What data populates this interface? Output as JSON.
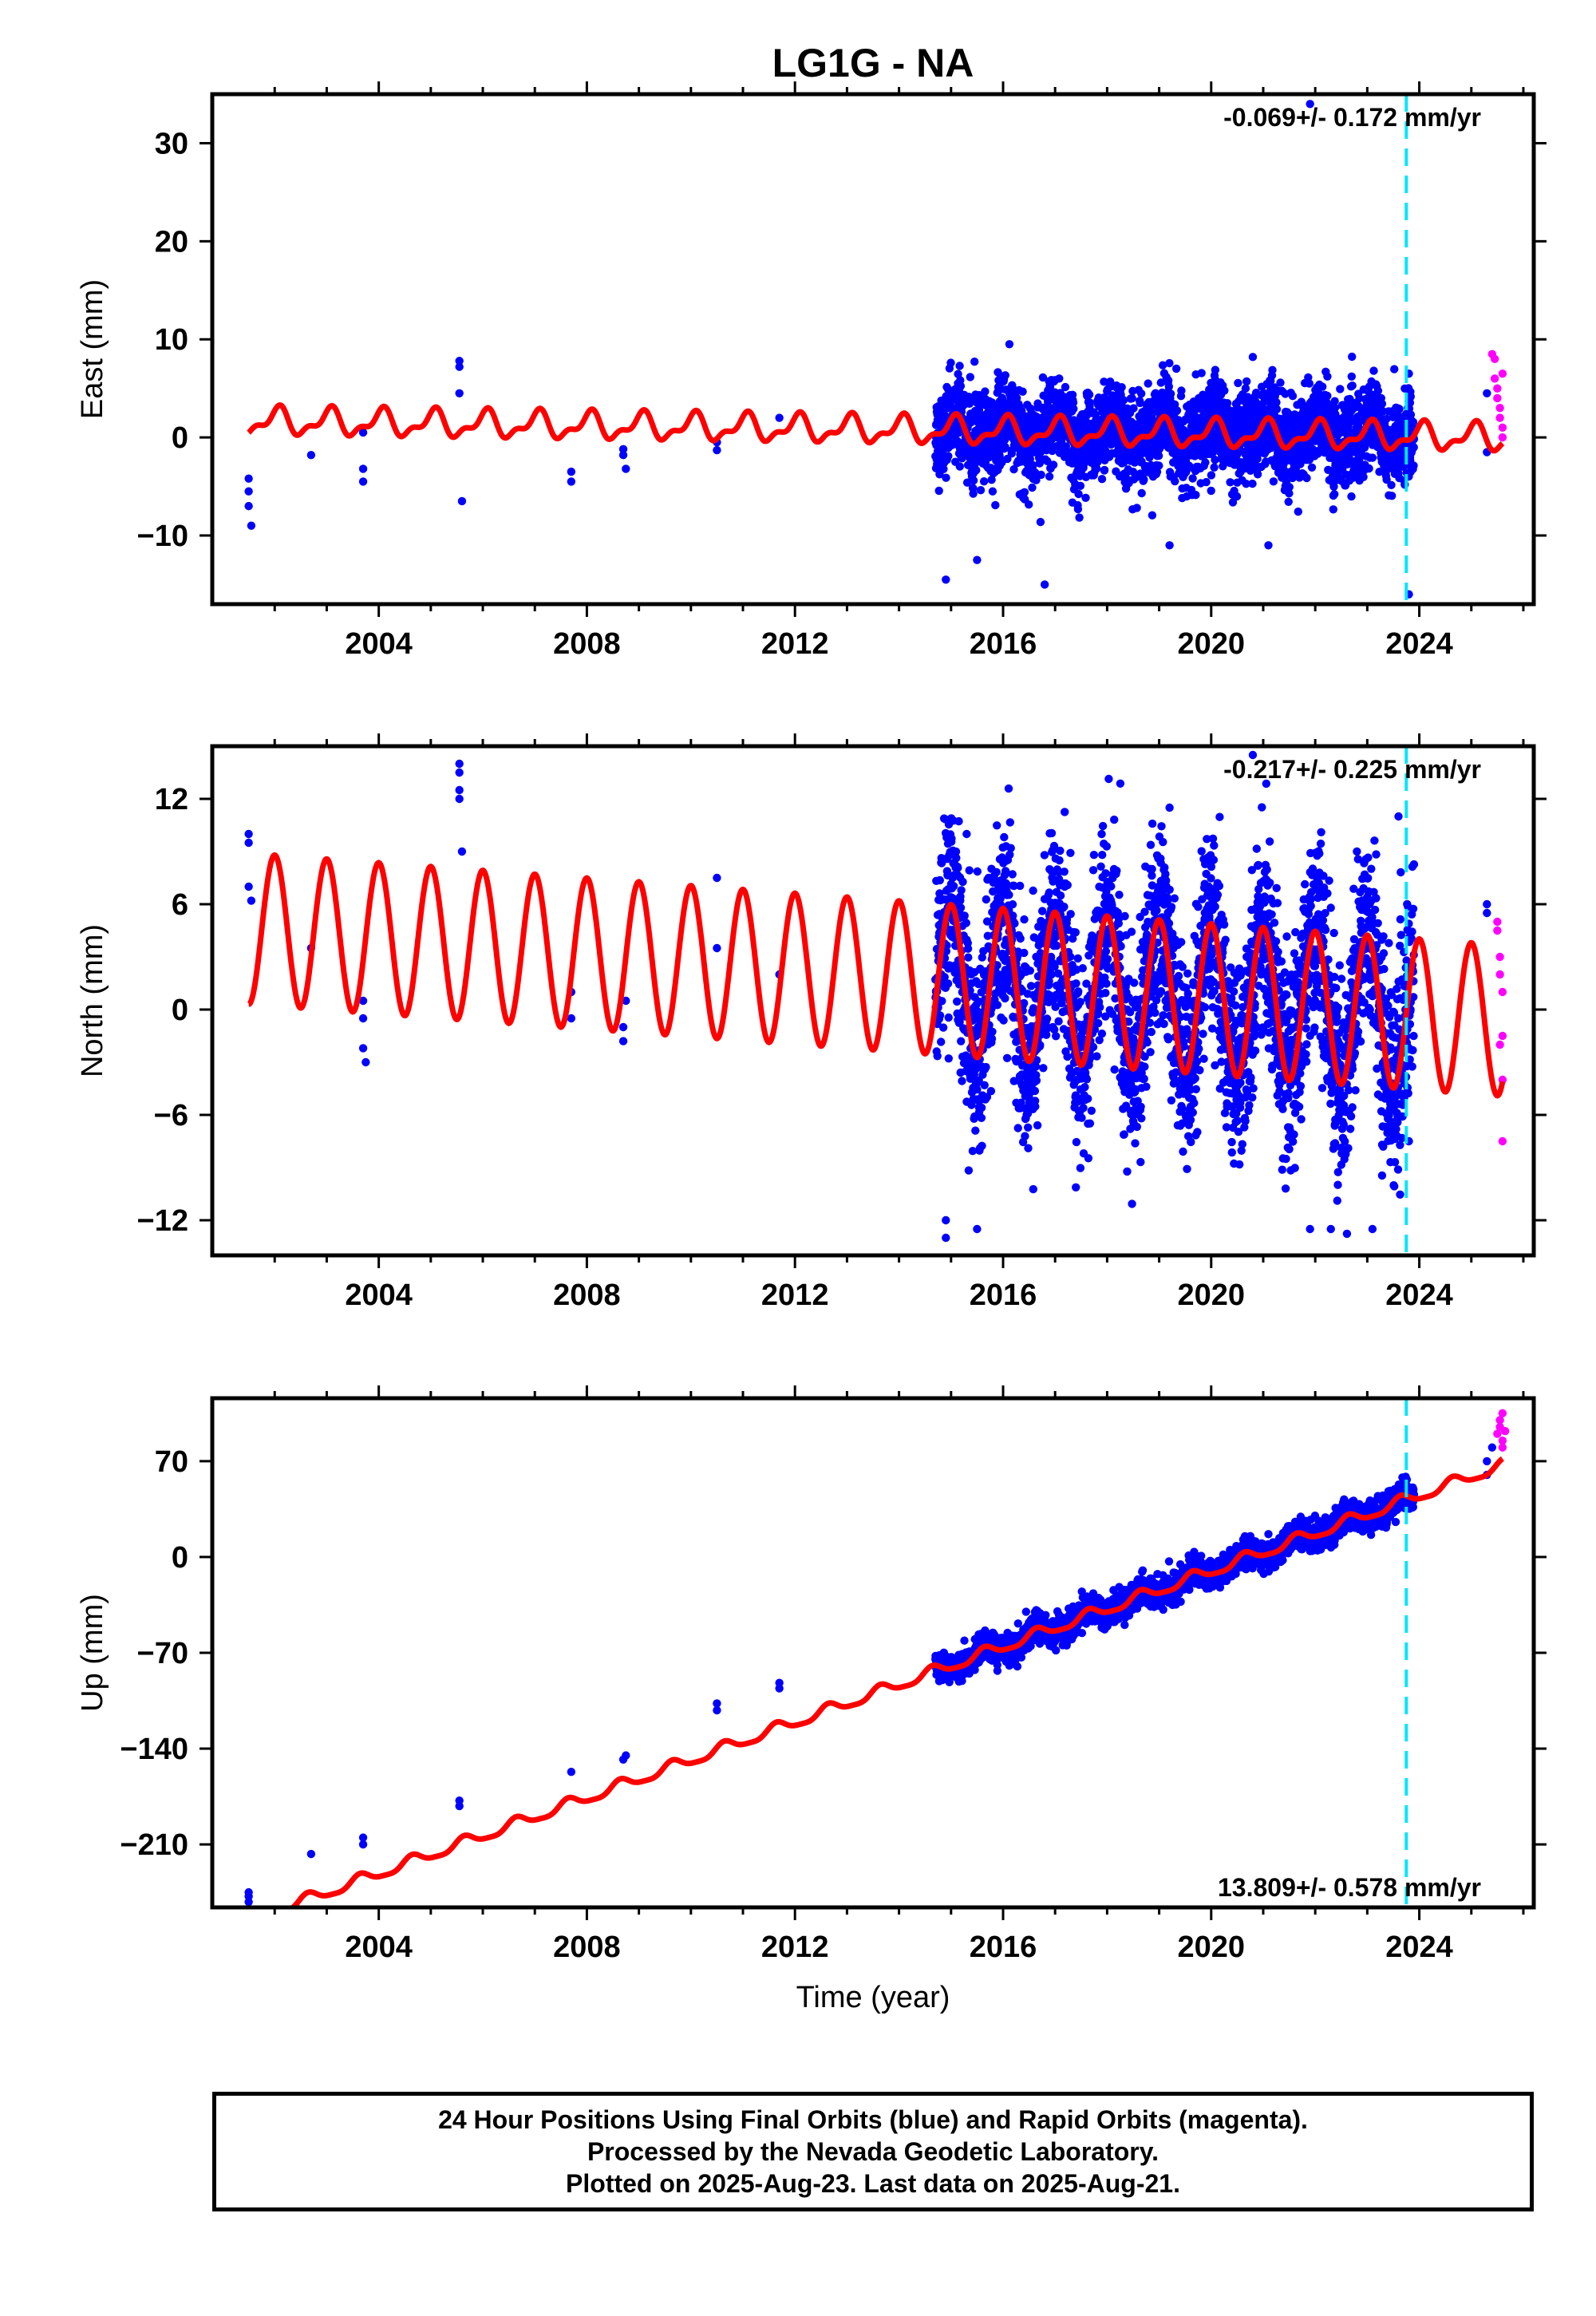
{
  "title": "LG1G - NA",
  "x_axis_label": "Time (year)",
  "footer": {
    "line1": "24 Hour Positions Using Final Orbits (blue) and Rapid Orbits (magenta).",
    "line2": "Processed by the Nevada Geodetic Laboratory.",
    "line3": "Plotted on 2025-Aug-23. Last data on 2025-Aug-21."
  },
  "colors": {
    "final_orbits": "#0000ff",
    "rapid_orbits": "#ff00ff",
    "model_fit": "#ff0000",
    "event_marker": "#00e5ff"
  },
  "chart_data": [
    {
      "type": "scatter",
      "panel": "east",
      "ylabel": "East (mm)",
      "rate_label": "-0.069+/- 0.172 mm/yr",
      "xlim": [
        2000.8,
        2026.2
      ],
      "ylim": [
        -17,
        35
      ],
      "xticks": [
        2004,
        2008,
        2012,
        2016,
        2020,
        2024
      ],
      "yticks": [
        -10,
        0,
        10,
        20,
        30
      ],
      "ytick_labels": [
        "−10",
        "0",
        "10",
        "20",
        "30"
      ],
      "rate_mm_per_yr": -0.069,
      "event_line_x": 2023.75,
      "model": {
        "offset": 0.8,
        "rate": -0.069,
        "ref_year": 2013.5,
        "annual_amp": 1.2,
        "annual_phase": 0.2,
        "semi_amp": 0.6,
        "semi_phase": 1.0
      },
      "scatter_noise": 2.2,
      "dense_span": [
        2014.7,
        2023.9
      ],
      "final_points": [
        [
          2001.5,
          -4.2
        ],
        [
          2001.5,
          -5.5
        ],
        [
          2001.5,
          -7.0
        ],
        [
          2001.55,
          -9.0
        ],
        [
          2002.7,
          -1.8
        ],
        [
          2003.7,
          -3.2
        ],
        [
          2003.7,
          -4.5
        ],
        [
          2003.7,
          0.5
        ],
        [
          2005.55,
          7.8
        ],
        [
          2005.55,
          7.2
        ],
        [
          2005.55,
          4.5
        ],
        [
          2005.6,
          -6.5
        ],
        [
          2007.7,
          -3.5
        ],
        [
          2007.7,
          -4.5
        ],
        [
          2008.7,
          -1.2
        ],
        [
          2008.7,
          -1.8
        ],
        [
          2008.75,
          -3.2
        ],
        [
          2010.5,
          -0.5
        ],
        [
          2010.5,
          -1.3
        ],
        [
          2011.7,
          2.0
        ],
        [
          2014.9,
          -14.5
        ],
        [
          2015.5,
          -12.5
        ],
        [
          2016.8,
          -15.0
        ],
        [
          2019.2,
          -11.0
        ],
        [
          2020.8,
          8.2
        ],
        [
          2021.1,
          -11.0
        ],
        [
          2021.9,
          34.0
        ],
        [
          2023.8,
          -16.0
        ],
        [
          2023.8,
          6.5
        ],
        [
          2025.3,
          4.5
        ],
        [
          2025.3,
          -1.5
        ]
      ],
      "rapid_points": [
        [
          2025.4,
          8.5
        ],
        [
          2025.45,
          8.0
        ],
        [
          2025.45,
          6.0
        ],
        [
          2025.5,
          5.0
        ],
        [
          2025.5,
          4.0
        ],
        [
          2025.55,
          3.0
        ],
        [
          2025.55,
          2.0
        ],
        [
          2025.6,
          1.0
        ],
        [
          2025.6,
          0.0
        ],
        [
          2025.6,
          6.5
        ]
      ]
    },
    {
      "type": "scatter",
      "panel": "north",
      "ylabel": "North (mm)",
      "rate_label": "-0.217+/- 0.225 mm/yr",
      "xlim": [
        2000.8,
        2026.2
      ],
      "ylim": [
        -14,
        15
      ],
      "xticks": [
        2004,
        2008,
        2012,
        2016,
        2020,
        2024
      ],
      "yticks": [
        -12,
        -6,
        0,
        6,
        12
      ],
      "ytick_labels": [
        "−12",
        "−6",
        "0",
        "6",
        "12"
      ],
      "rate_mm_per_yr": -0.217,
      "event_line_x": 2023.75,
      "model": {
        "offset": 2.0,
        "rate": -0.217,
        "ref_year": 2013.5,
        "annual_amp": 4.3,
        "annual_phase": 0.25,
        "semi_amp": 0.0,
        "semi_phase": 0.0
      },
      "scatter_noise": 2.8,
      "dense_span": [
        2014.7,
        2023.9
      ],
      "final_points": [
        [
          2001.5,
          10.0
        ],
        [
          2001.5,
          9.5
        ],
        [
          2001.5,
          7.0
        ],
        [
          2001.55,
          6.2
        ],
        [
          2002.7,
          3.5
        ],
        [
          2003.7,
          0.5
        ],
        [
          2003.7,
          -0.5
        ],
        [
          2003.7,
          -2.2
        ],
        [
          2003.75,
          -3.0
        ],
        [
          2005.55,
          14.0
        ],
        [
          2005.55,
          13.5
        ],
        [
          2005.55,
          12.5
        ],
        [
          2005.55,
          12.0
        ],
        [
          2005.6,
          9.0
        ],
        [
          2007.7,
          1.0
        ],
        [
          2007.7,
          -0.5
        ],
        [
          2008.7,
          -1.0
        ],
        [
          2008.7,
          -1.8
        ],
        [
          2008.75,
          0.5
        ],
        [
          2010.5,
          7.5
        ],
        [
          2010.5,
          3.5
        ],
        [
          2011.7,
          2.0
        ],
        [
          2014.9,
          -13.0
        ],
        [
          2014.9,
          -12.0
        ],
        [
          2015.5,
          -12.5
        ],
        [
          2015.3,
          10.0
        ],
        [
          2019.2,
          11.5
        ],
        [
          2020.8,
          14.5
        ],
        [
          2021.9,
          -12.5
        ],
        [
          2022.3,
          -12.5
        ],
        [
          2023.1,
          -12.5
        ],
        [
          2023.6,
          11.0
        ],
        [
          2023.8,
          -7.5
        ],
        [
          2025.3,
          6.0
        ],
        [
          2025.3,
          5.5
        ]
      ],
      "rapid_points": [
        [
          2025.5,
          5.0
        ],
        [
          2025.5,
          4.5
        ],
        [
          2025.55,
          3.0
        ],
        [
          2025.55,
          2.0
        ],
        [
          2025.6,
          1.0
        ],
        [
          2025.6,
          -1.5
        ],
        [
          2025.6,
          -4.0
        ],
        [
          2025.6,
          -7.5
        ],
        [
          2025.55,
          -2.0
        ]
      ]
    },
    {
      "type": "scatter",
      "panel": "up",
      "ylabel": "Up (mm)",
      "rate_label": "13.809+/- 0.578 mm/yr",
      "xlim": [
        2000.8,
        2026.2
      ],
      "ylim": [
        -256,
        116
      ],
      "xticks": [
        2004,
        2008,
        2012,
        2016,
        2020,
        2024
      ],
      "yticks": [
        -210,
        -140,
        -70,
        0,
        70
      ],
      "ytick_labels": [
        "−210",
        "−140",
        "−70",
        "0",
        "70"
      ],
      "rate_mm_per_yr": 13.809,
      "event_line_x": 2023.75,
      "model": {
        "offset": -100.0,
        "rate": 13.809,
        "ref_year": 2013.5,
        "annual_amp": 4.0,
        "annual_phase": 0.6,
        "semi_amp": 1.0,
        "semi_phase": 0.0
      },
      "scatter_noise": 5.0,
      "dense_span": [
        2014.7,
        2023.9
      ],
      "final_points": [
        [
          2001.5,
          -245.0
        ],
        [
          2001.5,
          -248.0
        ],
        [
          2001.5,
          -252.0
        ],
        [
          2002.7,
          -217.0
        ],
        [
          2003.7,
          -205.0
        ],
        [
          2003.7,
          -210.0
        ],
        [
          2005.55,
          -182.0
        ],
        [
          2005.55,
          -178.0
        ],
        [
          2007.7,
          -157.0
        ],
        [
          2008.7,
          -148.0
        ],
        [
          2008.75,
          -145.0
        ],
        [
          2010.5,
          -107.0
        ],
        [
          2010.5,
          -112.0
        ],
        [
          2011.7,
          -92.0
        ],
        [
          2011.7,
          -96.0
        ],
        [
          2025.3,
          70.0
        ],
        [
          2025.3,
          60.0
        ],
        [
          2025.4,
          80.0
        ]
      ],
      "rapid_points": [
        [
          2025.5,
          90.0
        ],
        [
          2025.55,
          95.0
        ],
        [
          2025.55,
          100.0
        ],
        [
          2025.6,
          105.0
        ],
        [
          2025.6,
          85.0
        ],
        [
          2025.6,
          80.0
        ],
        [
          2025.65,
          92.0
        ]
      ]
    }
  ]
}
